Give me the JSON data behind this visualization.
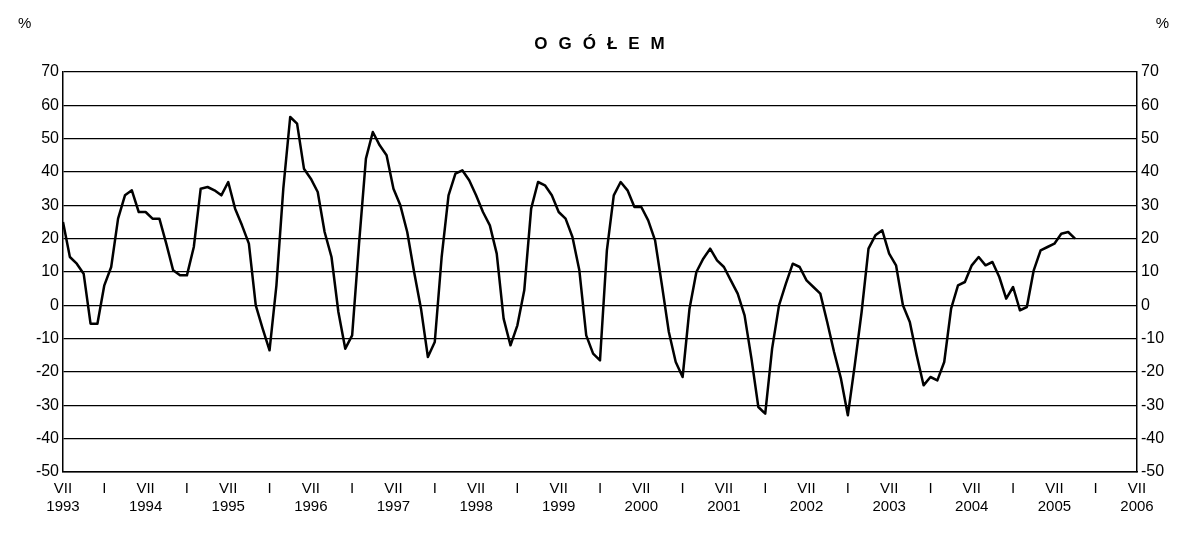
{
  "chart_data": {
    "type": "line",
    "title": "OGÓŁEM",
    "ylabel": "%",
    "y2label": "%",
    "x": [
      "1993-07",
      "1993-08",
      "1993-09",
      "1993-10",
      "1993-11",
      "1993-12",
      "1994-01",
      "1994-02",
      "1994-03",
      "1994-04",
      "1994-05",
      "1994-06",
      "1994-07",
      "1994-08",
      "1994-09",
      "1994-10",
      "1994-11",
      "1994-12",
      "1995-01",
      "1995-02",
      "1995-03",
      "1995-04",
      "1995-05",
      "1995-06",
      "1995-07",
      "1995-08",
      "1995-09",
      "1995-10",
      "1995-11",
      "1995-12",
      "1996-01",
      "1996-02",
      "1996-03",
      "1996-04",
      "1996-05",
      "1996-06",
      "1996-07",
      "1996-08",
      "1996-09",
      "1996-10",
      "1996-11",
      "1996-12",
      "1997-01",
      "1997-02",
      "1997-03",
      "1997-04",
      "1997-05",
      "1997-06",
      "1997-07",
      "1997-08",
      "1997-09",
      "1997-10",
      "1997-11",
      "1997-12",
      "1998-01",
      "1998-02",
      "1998-03",
      "1998-04",
      "1998-05",
      "1998-06",
      "1998-07",
      "1998-08",
      "1998-09",
      "1998-10",
      "1998-11",
      "1998-12",
      "1999-01",
      "1999-02",
      "1999-03",
      "1999-04",
      "1999-05",
      "1999-06",
      "1999-07",
      "1999-08",
      "1999-09",
      "1999-10",
      "1999-11",
      "1999-12",
      "2000-01",
      "2000-02",
      "2000-03",
      "2000-04",
      "2000-05",
      "2000-06",
      "2000-07",
      "2000-08",
      "2000-09",
      "2000-10",
      "2000-11",
      "2000-12",
      "2001-01",
      "2001-02",
      "2001-03",
      "2001-04",
      "2001-05",
      "2001-06",
      "2001-07",
      "2001-08",
      "2001-09",
      "2001-10",
      "2001-11",
      "2001-12",
      "2002-01",
      "2002-02",
      "2002-03",
      "2002-04",
      "2002-05",
      "2002-06",
      "2002-07",
      "2002-08",
      "2002-09",
      "2002-10",
      "2002-11",
      "2002-12",
      "2003-01",
      "2003-02",
      "2003-03",
      "2003-04",
      "2003-05",
      "2003-06",
      "2003-07",
      "2003-08",
      "2003-09",
      "2003-10",
      "2003-11",
      "2003-12",
      "2004-01",
      "2004-02",
      "2004-03",
      "2004-04",
      "2004-05",
      "2004-06",
      "2004-07",
      "2004-08",
      "2004-09",
      "2004-10",
      "2004-11",
      "2004-12",
      "2005-01",
      "2005-02",
      "2005-03",
      "2005-04",
      "2005-05",
      "2005-06",
      "2005-07",
      "2005-08",
      "2005-09",
      "2005-10"
    ],
    "series": [
      {
        "color": "#000000",
        "values": [
          25,
          14.5,
          12.5,
          9.5,
          -5.5,
          -5.5,
          6,
          11.5,
          26,
          33,
          34.5,
          28,
          28,
          26,
          26,
          18.5,
          10.5,
          9,
          9,
          17.5,
          35,
          35.5,
          34.5,
          33,
          37,
          29,
          24,
          18.5,
          0,
          -7,
          -13.5,
          6,
          35,
          56.5,
          54.5,
          41,
          38,
          34,
          22,
          14.5,
          -2,
          -13,
          -9,
          18.5,
          44,
          52,
          48,
          45,
          35,
          30,
          22,
          10,
          -1,
          -15.5,
          -11,
          14.5,
          33,
          39.5,
          40.5,
          37.5,
          33,
          28,
          24,
          15.5,
          -4,
          -12,
          -6,
          4.5,
          29,
          37,
          36,
          33,
          28,
          26,
          20.5,
          10.5,
          -9,
          -14.5,
          -16.5,
          16.5,
          33,
          37,
          34.5,
          29.5,
          29.5,
          25.5,
          19.5,
          6,
          -8,
          -17,
          -21.5,
          -1,
          10,
          14,
          17,
          13.5,
          11.5,
          7.5,
          3.5,
          -3,
          -16,
          -30.5,
          -32.5,
          -13,
          0,
          6.5,
          12.5,
          11.5,
          7.5,
          5.5,
          3.5,
          -5,
          -14,
          -22,
          -33,
          -18,
          -2,
          17,
          21,
          22.5,
          15.5,
          12,
          0,
          -5,
          -15,
          -24,
          -21.5,
          -22.5,
          -17,
          -1,
          6,
          7,
          12,
          14.5,
          12,
          13,
          8.5,
          2,
          5.5,
          -1.5,
          -0.5,
          10.5,
          16.5,
          17.5,
          18.5,
          21.5,
          22,
          20
        ]
      }
    ],
    "xlim": [
      "1993-07",
      "2006-07"
    ],
    "xticks": [
      {
        "value": "1993-07",
        "label": "VII\n1993"
      },
      {
        "value": "1994-01",
        "label": "I"
      },
      {
        "value": "1994-07",
        "label": "VII\n1994"
      },
      {
        "value": "1995-01",
        "label": "I"
      },
      {
        "value": "1995-07",
        "label": "VII\n1995"
      },
      {
        "value": "1996-01",
        "label": "I"
      },
      {
        "value": "1996-07",
        "label": "VII\n1996"
      },
      {
        "value": "1997-01",
        "label": "I"
      },
      {
        "value": "1997-07",
        "label": "VII\n1997"
      },
      {
        "value": "1998-01",
        "label": "I"
      },
      {
        "value": "1998-07",
        "label": "VII\n1998"
      },
      {
        "value": "1999-01",
        "label": "I"
      },
      {
        "value": "1999-07",
        "label": "VII\n1999"
      },
      {
        "value": "2000-01",
        "label": "I"
      },
      {
        "value": "2000-07",
        "label": "VII\n2000"
      },
      {
        "value": "2001-01",
        "label": "I"
      },
      {
        "value": "2001-07",
        "label": "VII\n2001"
      },
      {
        "value": "2002-01",
        "label": "I"
      },
      {
        "value": "2002-07",
        "label": "VII\n2002"
      },
      {
        "value": "2003-01",
        "label": "I"
      },
      {
        "value": "2003-07",
        "label": "VII\n2003"
      },
      {
        "value": "2004-01",
        "label": "I"
      },
      {
        "value": "2004-07",
        "label": "VII\n2004"
      },
      {
        "value": "2005-01",
        "label": "I"
      },
      {
        "value": "2005-07",
        "label": "VII\n2005"
      },
      {
        "value": "2006-01",
        "label": "I"
      },
      {
        "value": "2006-07",
        "label": "VII\n2006"
      }
    ],
    "ylim": [
      -50,
      70
    ],
    "yticks": [
      -50,
      -40,
      -30,
      -20,
      -10,
      0,
      10,
      20,
      30,
      40,
      50,
      60,
      70
    ],
    "y2lim": [
      -50,
      70
    ],
    "y2ticks": [
      -50,
      -40,
      -30,
      -20,
      -10,
      0,
      10,
      20,
      30,
      40,
      50,
      60,
      70
    ],
    "grid": "y",
    "legend": false
  }
}
